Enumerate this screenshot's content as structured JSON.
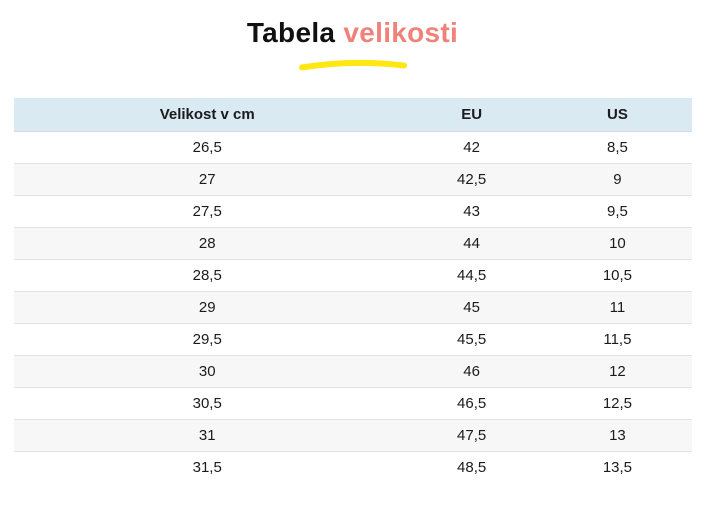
{
  "title": {
    "primary": "Tabela",
    "accent": "velikosti"
  },
  "colors": {
    "accent": "#f0827a",
    "underline": "#ffe712",
    "header_bg": "#d9eaf3",
    "alt_row_bg": "#f7f7f7",
    "border": "#e2e2e2",
    "header_border": "#d3dce1",
    "text": "#1b1b1b"
  },
  "chart_data": {
    "type": "table",
    "title": "Tabela velikosti",
    "columns": [
      "Velikost v cm",
      "EU",
      "US"
    ],
    "rows": [
      [
        "26,5",
        "42",
        "8,5"
      ],
      [
        "27",
        "42,5",
        "9"
      ],
      [
        "27,5",
        "43",
        "9,5"
      ],
      [
        "28",
        "44",
        "10"
      ],
      [
        "28,5",
        "44,5",
        "10,5"
      ],
      [
        "29",
        "45",
        "11"
      ],
      [
        "29,5",
        "45,5",
        "11,5"
      ],
      [
        "30",
        "46",
        "12"
      ],
      [
        "30,5",
        "46,5",
        "12,5"
      ],
      [
        "31",
        "47,5",
        "13"
      ],
      [
        "31,5",
        "48,5",
        "13,5"
      ]
    ],
    "layout": {
      "zebra_striping": true,
      "header_background": "#d9eaf3",
      "column_alignment": [
        "center",
        "center",
        "center"
      ]
    }
  }
}
